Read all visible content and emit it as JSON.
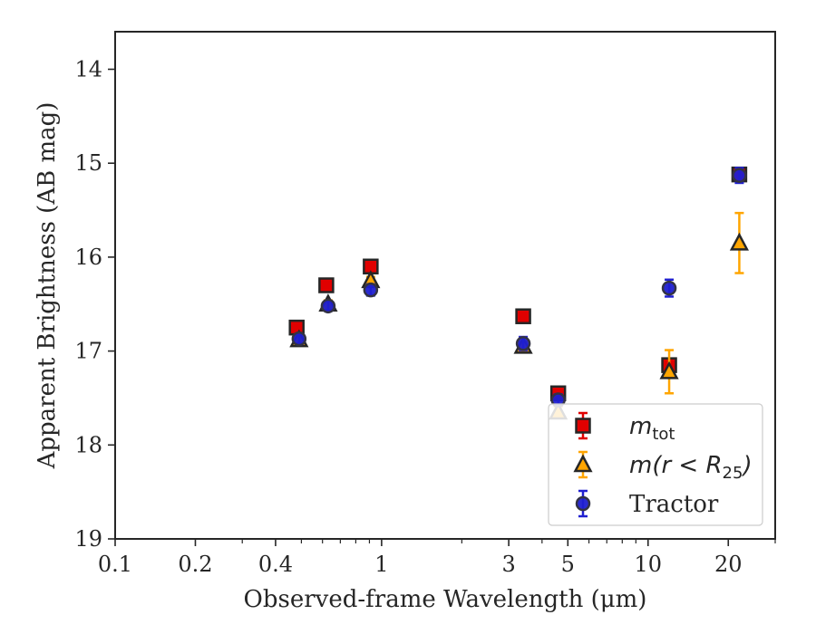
{
  "chart_data": {
    "type": "scatter",
    "xlabel": "Observed-frame Wavelength (μm)",
    "ylabel": "Apparent Brightness (AB mag)",
    "xscale": "log",
    "yaxis_inverted": true,
    "xlim": [
      0.1,
      30
    ],
    "ylim": [
      19,
      13.6
    ],
    "xticks": [
      {
        "value": 0.1,
        "label": "0.1"
      },
      {
        "value": 0.2,
        "label": "0.2"
      },
      {
        "value": 0.4,
        "label": "0.4"
      },
      {
        "value": 1,
        "label": "1"
      },
      {
        "value": 3,
        "label": "3"
      },
      {
        "value": 5,
        "label": "5"
      },
      {
        "value": 10,
        "label": "10"
      },
      {
        "value": 20,
        "label": "20"
      }
    ],
    "yticks": [
      14,
      15,
      16,
      17,
      18,
      19
    ],
    "grid": false,
    "legend_position": "lower-right",
    "series": [
      {
        "name": "m_tot",
        "legend_main": "m",
        "legend_sub": "tot",
        "legend_tail": "",
        "marker": "square",
        "color": "#e00000",
        "points": [
          {
            "x": 0.48,
            "y": 16.75,
            "err": 0.05
          },
          {
            "x": 0.62,
            "y": 16.3,
            "err": 0.05
          },
          {
            "x": 0.91,
            "y": 16.1,
            "err": 0.05
          },
          {
            "x": 3.4,
            "y": 16.63,
            "err": 0.05
          },
          {
            "x": 4.6,
            "y": 17.45,
            "err": 0.06
          },
          {
            "x": 12.0,
            "y": 17.15,
            "err": 0.07
          },
          {
            "x": 22.0,
            "y": 15.12,
            "err": 0.06
          }
        ]
      },
      {
        "name": "m(r < R25)",
        "legend_main": "m(r < R",
        "legend_sub": "25",
        "legend_tail": ")",
        "marker": "triangle",
        "color": "#ffa500",
        "points": [
          {
            "x": 0.49,
            "y": 16.88,
            "err": 0.04
          },
          {
            "x": 0.63,
            "y": 16.5,
            "err": 0.04
          },
          {
            "x": 0.91,
            "y": 16.25,
            "err": 0.04
          },
          {
            "x": 3.4,
            "y": 16.95,
            "err": 0.05
          },
          {
            "x": 4.6,
            "y": 17.65,
            "err": 0.06
          },
          {
            "x": 12.0,
            "y": 17.22,
            "err": 0.23
          },
          {
            "x": 22.0,
            "y": 15.85,
            "err": 0.32
          }
        ]
      },
      {
        "name": "Tractor",
        "legend_main": "Tractor",
        "legend_sub": "",
        "legend_tail": "",
        "marker": "circle",
        "color": "#1f1fd0",
        "points": [
          {
            "x": 0.49,
            "y": 16.87,
            "err": 0.05
          },
          {
            "x": 0.63,
            "y": 16.52,
            "err": 0.05
          },
          {
            "x": 0.91,
            "y": 16.35,
            "err": 0.06
          },
          {
            "x": 3.4,
            "y": 16.92,
            "err": 0.07
          },
          {
            "x": 4.6,
            "y": 17.52,
            "err": 0.06
          },
          {
            "x": 12.0,
            "y": 16.33,
            "err": 0.09
          },
          {
            "x": 22.0,
            "y": 15.13,
            "err": 0.08
          }
        ]
      }
    ]
  }
}
